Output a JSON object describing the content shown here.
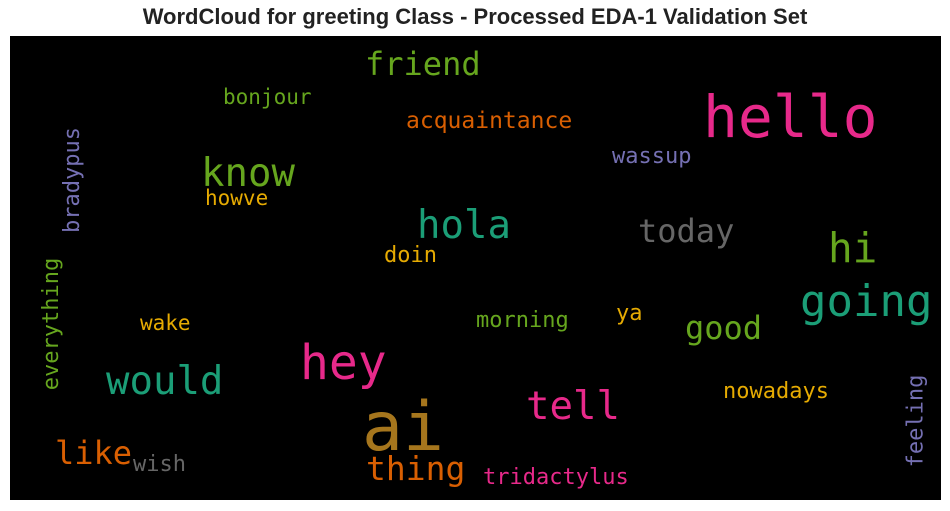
{
  "chart_data": {
    "type": "wordcloud",
    "title": "WordCloud for greeting Class - Processed EDA-1 Validation Set",
    "background": "#000000",
    "words": [
      {
        "text": "ai",
        "color": "#a6761d"
      },
      {
        "text": "hello",
        "color": "#e7298a"
      },
      {
        "text": "hey",
        "color": "#e7298a"
      },
      {
        "text": "going",
        "color": "#1b9e77"
      },
      {
        "text": "would",
        "color": "#1b9e77"
      },
      {
        "text": "hola",
        "color": "#1b9e77"
      },
      {
        "text": "know",
        "color": "#66a61e"
      },
      {
        "text": "hi",
        "color": "#66a61e"
      },
      {
        "text": "tell",
        "color": "#e7298a"
      },
      {
        "text": "thing",
        "color": "#d95f02"
      },
      {
        "text": "friend",
        "color": "#66a61e"
      },
      {
        "text": "good",
        "color": "#66a61e"
      },
      {
        "text": "today",
        "color": "#666666"
      },
      {
        "text": "like",
        "color": "#d95f02"
      },
      {
        "text": "acquaintance",
        "color": "#d95f02"
      },
      {
        "text": "nowadays",
        "color": "#e6ab02"
      },
      {
        "text": "tridactylus",
        "color": "#e7298a"
      },
      {
        "text": "morning",
        "color": "#66a61e"
      },
      {
        "text": "wassup",
        "color": "#7570b3"
      },
      {
        "text": "bonjour",
        "color": "#66a61e"
      },
      {
        "text": "wish",
        "color": "#666666"
      },
      {
        "text": "bradypus",
        "color": "#7570b3"
      },
      {
        "text": "everything",
        "color": "#66a61e"
      },
      {
        "text": "feeling",
        "color": "#7570b3"
      },
      {
        "text": "howve",
        "color": "#e6ab02"
      },
      {
        "text": "doin",
        "color": "#e6ab02"
      },
      {
        "text": "wake",
        "color": "#e6ab02"
      },
      {
        "text": "ya",
        "color": "#e6ab02"
      }
    ]
  }
}
